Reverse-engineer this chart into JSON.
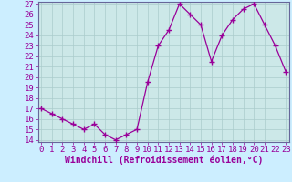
{
  "x": [
    0,
    1,
    2,
    3,
    4,
    5,
    6,
    7,
    8,
    9,
    10,
    11,
    12,
    13,
    14,
    15,
    16,
    17,
    18,
    19,
    20,
    21,
    22,
    23
  ],
  "y": [
    17,
    16.5,
    16,
    15.5,
    15,
    15.5,
    14.5,
    14,
    14.5,
    15,
    19.5,
    23,
    24.5,
    27,
    26,
    25,
    21.5,
    24,
    25.5,
    26.5,
    27,
    25,
    23,
    20.5
  ],
  "line_color": "#990099",
  "marker": "+",
  "marker_size": 4,
  "bg_color": "#cceeff",
  "grid_color": "#aacccc",
  "xlabel": "Windchill (Refroidissement éolien,°C)",
  "xlabel_fontsize": 7,
  "tick_fontsize": 6.5,
  "ylim": [
    14,
    27
  ],
  "xlim": [
    0,
    23
  ],
  "yticks": [
    14,
    15,
    16,
    17,
    18,
    19,
    20,
    21,
    22,
    23,
    24,
    25,
    26,
    27
  ],
  "xticks": [
    0,
    1,
    2,
    3,
    4,
    5,
    6,
    7,
    8,
    9,
    10,
    11,
    12,
    13,
    14,
    15,
    16,
    17,
    18,
    19,
    20,
    21,
    22,
    23
  ],
  "spine_color": "#666699",
  "axis_bg": "#cce8e8"
}
